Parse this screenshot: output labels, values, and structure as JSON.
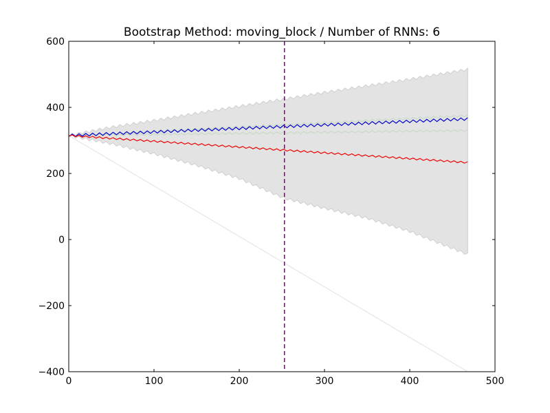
{
  "chart_data": {
    "type": "line",
    "title": "Bootstrap Method: moving_block / Number of RNNs: 6",
    "xlabel": "",
    "ylabel": "",
    "xlim": [
      0,
      500
    ],
    "ylim": [
      -400,
      600
    ],
    "xticks": [
      0,
      100,
      200,
      300,
      400,
      500
    ],
    "yticks": [
      -400,
      -200,
      0,
      200,
      400,
      600
    ],
    "ytick_labels": [
      "−400",
      "−200",
      "0",
      "200",
      "400",
      "600"
    ],
    "grid": false,
    "legend": "none",
    "x_end": 468,
    "split_x": 253,
    "period": 8,
    "band": {
      "x": [
        0,
        50,
        100,
        150,
        200,
        253,
        300,
        350,
        400,
        468
      ],
      "upper": [
        315,
        340,
        360,
        382,
        403,
        425,
        445,
        465,
        485,
        515
      ],
      "lower": [
        315,
        290,
        260,
        225,
        185,
        125,
        95,
        65,
        25,
        -45
      ],
      "color": "#e3e3e3",
      "edge_color": "#cfcfcf"
    },
    "series": [
      {
        "x": [
          0,
          468
        ],
        "y": [
          315,
          365
        ],
        "color": "#0000cc",
        "amplitude": 4
      },
      {
        "x": [
          0,
          468
        ],
        "y": [
          315,
          233
        ],
        "color": "#ee0000",
        "amplitude": 2.5
      }
    ],
    "faint_lines": [
      {
        "x": [
          0,
          468
        ],
        "y": [
          315,
          375
        ],
        "color": "#c8d9c8",
        "amplitude": 3
      },
      {
        "x": [
          0,
          468
        ],
        "y": [
          315,
          330
        ],
        "color": "#c8d9c8",
        "amplitude": 3
      },
      {
        "x": [
          0,
          468
        ],
        "y": [
          315,
          -400
        ],
        "color": "#e6e6e6",
        "amplitude": 0
      }
    ],
    "vline_color": "#800080"
  }
}
